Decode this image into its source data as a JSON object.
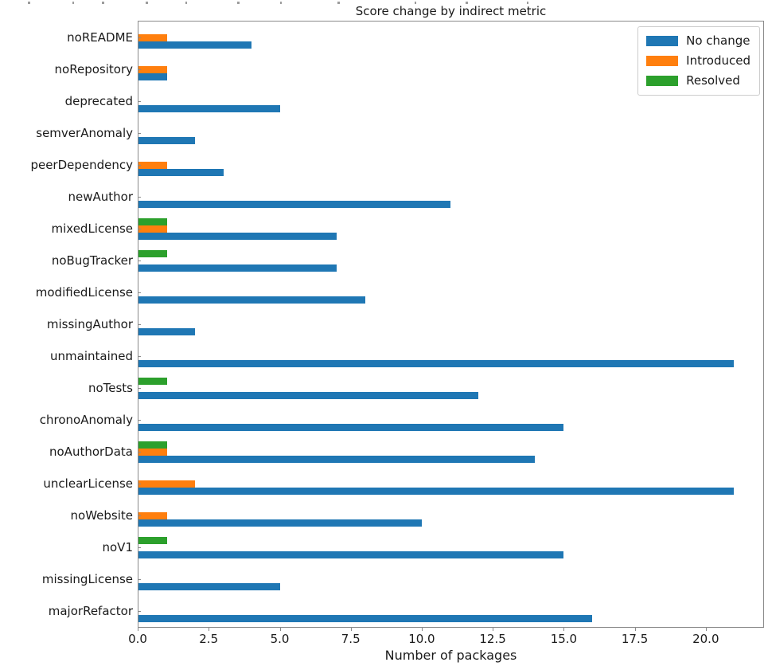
{
  "chart": {
    "title": "Score change by indirect metric",
    "xlabel": "Number of packages"
  },
  "chart_data": {
    "type": "bar",
    "orientation": "horizontal",
    "title": "Score change by indirect metric",
    "xlabel": "Number of packages",
    "ylabel": "",
    "grid": false,
    "legend_position": "upper right",
    "categories": [
      "noREADME",
      "noRepository",
      "deprecated",
      "semverAnomaly",
      "peerDependency",
      "newAuthor",
      "mixedLicense",
      "noBugTracker",
      "modifiedLicense",
      "missingAuthor",
      "unmaintained",
      "noTests",
      "chronoAnomaly",
      "noAuthorData",
      "unclearLicense",
      "noWebsite",
      "noV1",
      "missingLicense",
      "majorRefactor"
    ],
    "series": [
      {
        "name": "No change",
        "color": "#1f77b4",
        "values": [
          4,
          1,
          5,
          2,
          3,
          11,
          7,
          7,
          8,
          2,
          21,
          12,
          15,
          14,
          21,
          10,
          15,
          5,
          16
        ]
      },
      {
        "name": "Introduced",
        "color": "#ff7f0e",
        "values": [
          1,
          1,
          0,
          0,
          1,
          0,
          1,
          0,
          0,
          0,
          0,
          0,
          0,
          1,
          2,
          1,
          0,
          0,
          0
        ]
      },
      {
        "name": "Resolved",
        "color": "#2ca02c",
        "values": [
          0,
          0,
          0,
          0,
          0,
          0,
          1,
          1,
          0,
          0,
          0,
          1,
          0,
          1,
          0,
          0,
          1,
          0,
          0
        ]
      }
    ],
    "x_ticks": [
      0,
      2.5,
      5,
      7.5,
      10,
      12.5,
      15,
      17.5,
      20
    ],
    "x_tick_labels": [
      "0.0",
      "2.5",
      "5.0",
      "7.5",
      "10.0",
      "12.5",
      "15.0",
      "17.5",
      "20.0"
    ],
    "xlim": [
      0,
      22.05
    ]
  }
}
